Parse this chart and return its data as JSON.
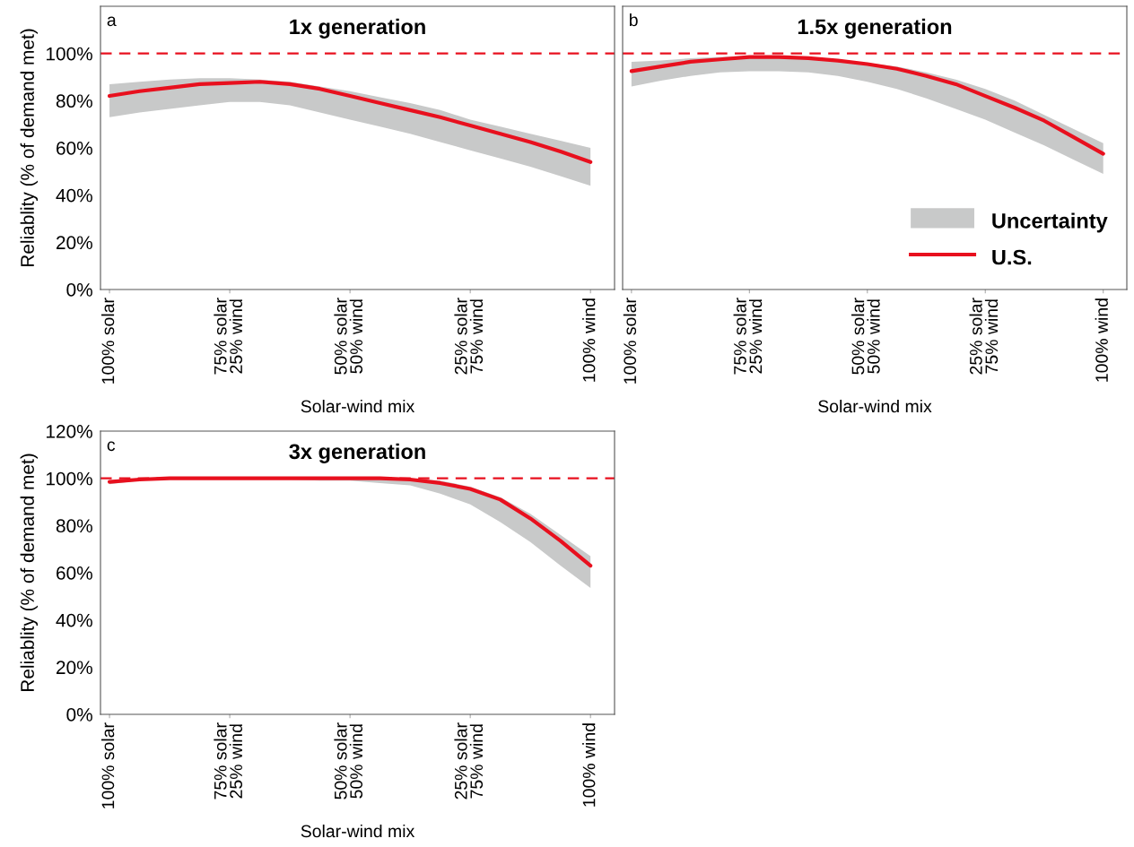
{
  "chart_data": [
    {
      "type": "line",
      "title": "1x generation",
      "xlabel": "Solar-wind mix",
      "ylabel": "Reliablity (% of demand met)",
      "categories": [
        "100% solar",
        null,
        null,
        null,
        "75% solar\n25% wind",
        null,
        null,
        null,
        "50% solar\n50% wind",
        null,
        null,
        null,
        "25% solar\n75% wind",
        null,
        null,
        null,
        "100% wind"
      ],
      "ylim": [
        0,
        120
      ],
      "yticks": [
        {
          "value": 0,
          "label": "0%"
        },
        {
          "value": 20,
          "label": "20%"
        },
        {
          "value": 40,
          "label": "40%"
        },
        {
          "value": 60,
          "label": "60%"
        },
        {
          "value": 80,
          "label": "80%"
        },
        {
          "value": 100,
          "label": "100%"
        }
      ],
      "series": [
        {
          "color": "#e8101e",
          "values": [
            82,
            84,
            85.5,
            87,
            87.5,
            88,
            87,
            85,
            82,
            79,
            76,
            73,
            69.5,
            66,
            62.5,
            58.5,
            54
          ],
          "upper": [
            87,
            88,
            89,
            89.5,
            89.5,
            89,
            88,
            86,
            84,
            81.5,
            79,
            76,
            72,
            69,
            66,
            63,
            60
          ],
          "lower": [
            73,
            75,
            76.5,
            78,
            79.5,
            79.5,
            78,
            75,
            72,
            69,
            66,
            62.5,
            59,
            55.5,
            52,
            48,
            44
          ]
        }
      ],
      "ref_lines": [
        {
          "axis": "y",
          "value": 100,
          "color": "#e8101e",
          "line_style": "dashed"
        }
      ],
      "annotations": [
        "a"
      ],
      "legend": false,
      "marker": "none",
      "line_style": "solid"
    },
    {
      "type": "line",
      "title": "1.5x generation",
      "xlabel": "Solar-wind mix",
      "categories": [
        "100% solar",
        null,
        null,
        null,
        "75% solar\n25% wind",
        null,
        null,
        null,
        "50% solar\n50% wind",
        null,
        null,
        null,
        "25% solar\n75% wind",
        null,
        null,
        null,
        "100% wind"
      ],
      "ylim": [
        0,
        120
      ],
      "tick_labels": "x",
      "series": [
        {
          "name": "U.S.",
          "color": "#e8101e",
          "values": [
            92.5,
            94.5,
            96.5,
            97.5,
            98.5,
            98.5,
            98,
            97,
            95.5,
            93.5,
            90.5,
            87,
            82,
            77,
            71.5,
            64.5,
            57.5
          ],
          "upper": [
            96.5,
            97,
            98,
            98.5,
            99,
            99,
            98.5,
            97.5,
            96,
            94.5,
            92,
            89,
            85,
            80,
            74,
            68,
            62
          ],
          "lower": [
            86,
            88.5,
            90.5,
            92,
            92.5,
            92.5,
            92,
            90.5,
            88,
            85,
            81,
            76.5,
            72,
            66.5,
            61,
            55,
            49
          ]
        }
      ],
      "ref_lines": [
        {
          "axis": "y",
          "value": 100,
          "color": "#e8101e",
          "line_style": "dashed"
        }
      ],
      "annotations": [
        "b",
        "Uncertainty"
      ],
      "legend": "bottom right",
      "marker": "none",
      "line_style": "solid"
    },
    {
      "type": "line",
      "title": "3x generation",
      "xlabel": "Solar-wind mix",
      "ylabel": "Reliablity (% of demand met)",
      "categories": [
        "100% solar",
        null,
        null,
        null,
        "75% solar\n25% wind",
        null,
        null,
        null,
        "50% solar\n50% wind",
        null,
        null,
        null,
        "25% solar\n75% wind",
        null,
        null,
        null,
        "100% wind"
      ],
      "ylim": [
        0,
        120
      ],
      "yticks": [
        {
          "value": 0,
          "label": "0%"
        },
        {
          "value": 20,
          "label": "20%"
        },
        {
          "value": 40,
          "label": "40%"
        },
        {
          "value": 60,
          "label": "60%"
        },
        {
          "value": 80,
          "label": "80%"
        },
        {
          "value": 100,
          "label": "100%"
        },
        {
          "value": 120,
          "label": "120%"
        }
      ],
      "series": [
        {
          "color": "#e8101e",
          "values": [
            98.5,
            99.5,
            100,
            100,
            100,
            100,
            100,
            100,
            100,
            100,
            99.5,
            98,
            95.5,
            91,
            83,
            73.5,
            63
          ],
          "upper": [
            99,
            100,
            100,
            100,
            100,
            100,
            100,
            100,
            100,
            100,
            100,
            99,
            96.5,
            92,
            85,
            76,
            67
          ],
          "lower": [
            97.5,
            99,
            99.5,
            99.5,
            99.5,
            99.5,
            99.5,
            99,
            99,
            98,
            97,
            93.5,
            89,
            81.5,
            73,
            63,
            53.5
          ]
        }
      ],
      "ref_lines": [
        {
          "axis": "y",
          "value": 100,
          "color": "#e8101e",
          "line_style": "dashed"
        }
      ],
      "annotations": [
        "c"
      ],
      "legend": false,
      "marker": "none",
      "line_style": "solid"
    }
  ]
}
